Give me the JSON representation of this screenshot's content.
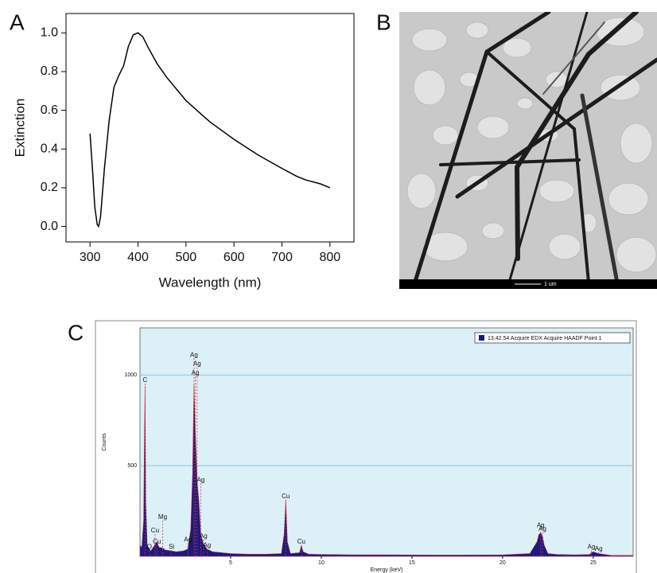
{
  "chart_data": [
    {
      "type": "line",
      "panel": "A",
      "xlabel": "Wavelength (nm)",
      "ylabel": "Extinction",
      "color": "#000000",
      "x": [
        300,
        305,
        310,
        315,
        318,
        322,
        330,
        340,
        350,
        360,
        370,
        380,
        390,
        400,
        410,
        420,
        440,
        460,
        480,
        500,
        550,
        600,
        650,
        700,
        730,
        740,
        750,
        780,
        800
      ],
      "values": [
        0.48,
        0.3,
        0.1,
        0.01,
        0.0,
        0.05,
        0.3,
        0.55,
        0.72,
        0.78,
        0.83,
        0.93,
        0.99,
        1.0,
        0.98,
        0.93,
        0.84,
        0.77,
        0.71,
        0.65,
        0.54,
        0.45,
        0.37,
        0.3,
        0.26,
        0.25,
        0.24,
        0.22,
        0.2
      ],
      "xlim": [
        250,
        850
      ],
      "ylim": [
        -0.08,
        1.1
      ],
      "xticks": [
        300,
        400,
        500,
        600,
        700,
        800
      ],
      "yticks": [
        {
          "value": 0,
          "label": "0.0"
        },
        0.2,
        0.4,
        0.6,
        0.8,
        {
          "value": 1,
          "label": "1.0"
        }
      ]
    },
    {
      "type": "area",
      "panel": "C",
      "xlabel": "Energy (keV)",
      "ylabel": "Counts",
      "x": [
        0,
        0.1,
        0.2,
        0.25,
        0.28,
        0.32,
        0.4,
        0.52,
        0.6,
        0.8,
        0.93,
        1.05,
        1.25,
        1.4,
        1.74,
        2.0,
        2.4,
        2.64,
        2.8,
        2.9,
        2.98,
        3.05,
        3.15,
        3.25,
        3.35,
        3.5,
        3.7,
        4.0,
        4.5,
        5,
        6,
        7,
        7.8,
        7.95,
        8.04,
        8.13,
        8.3,
        8.8,
        8.9,
        9.0,
        9.3,
        10,
        12,
        14,
        16,
        18,
        20,
        21.5,
        21.9,
        22.0,
        22.1,
        22.2,
        22.3,
        22.5,
        23,
        24,
        24.8,
        24.9,
        25.0,
        25.3,
        26,
        27.2
      ],
      "series": [
        {
          "name": "13.42.54 Acquire EDX Acquire HAADF Point 1",
          "color": "#1a1a80",
          "values": [
            60,
            50,
            200,
            700,
            940,
            300,
            60,
            40,
            30,
            60,
            80,
            50,
            45,
            35,
            30,
            25,
            30,
            40,
            150,
            450,
            950,
            700,
            420,
            300,
            120,
            70,
            40,
            25,
            20,
            15,
            12,
            12,
            15,
            120,
            310,
            80,
            15,
            20,
            60,
            25,
            12,
            10,
            8,
            8,
            7,
            7,
            8,
            15,
            80,
            120,
            130,
            110,
            60,
            15,
            10,
            8,
            10,
            20,
            25,
            15,
            5,
            5
          ]
        }
      ],
      "annotations": [
        {
          "label": "C",
          "x": 0.28,
          "y": 970
        },
        {
          "label": "O",
          "x": 0.52,
          "y": 50
        },
        {
          "label": "Cu",
          "x": 0.83,
          "y": 140
        },
        {
          "label": "Cu",
          "x": 0.93,
          "y": 80
        },
        {
          "label": "Mg",
          "x": 1.25,
          "y": 215
        },
        {
          "label": "Si",
          "x": 1.74,
          "y": 50
        },
        {
          "label": "Ag",
          "x": 2.64,
          "y": 90
        },
        {
          "label": "Ag",
          "x": 2.98,
          "y": 1110
        },
        {
          "label": "Ag",
          "x": 3.15,
          "y": 1060
        },
        {
          "label": "Ag",
          "x": 3.05,
          "y": 1010
        },
        {
          "label": "Ag",
          "x": 3.35,
          "y": 420
        },
        {
          "label": "Ag",
          "x": 3.5,
          "y": 110
        },
        {
          "label": "Ag",
          "x": 3.7,
          "y": 60
        },
        {
          "label": "Cu",
          "x": 8.04,
          "y": 330
        },
        {
          "label": "Cu",
          "x": 8.9,
          "y": 80
        },
        {
          "label": "Ag",
          "x": 22.1,
          "y": 170
        },
        {
          "label": "Ag",
          "x": 22.2,
          "y": 150
        },
        {
          "label": "Ag",
          "x": 24.9,
          "y": 50
        },
        {
          "label": "Ag",
          "x": 25.3,
          "y": 40
        }
      ],
      "xlim": [
        0,
        27.2
      ],
      "ylim": [
        0,
        1260
      ],
      "xticks": [
        5,
        10,
        15,
        20,
        25
      ],
      "yticks": [
        500,
        1000
      ],
      "grid": true,
      "legend": "top-right"
    }
  ],
  "image": {
    "panel": "B",
    "scale_bar": "1 um"
  }
}
